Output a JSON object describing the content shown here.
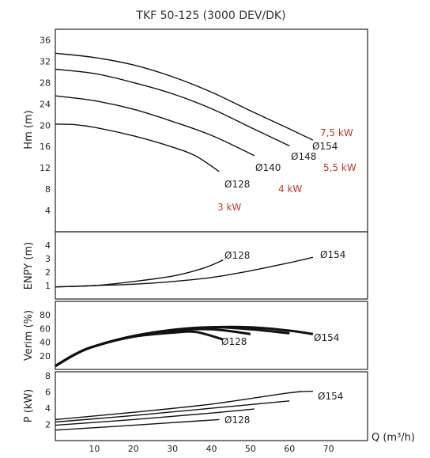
{
  "title": "TKF 50-125 (3000 DEV/DK)",
  "chart_data": {
    "type": "line",
    "title": "TKF 50-125 (3000 DEV/DK)",
    "xlabel": "Q (m³/h)",
    "xlim": [
      0,
      80
    ],
    "x_ticks": [
      "10",
      "20",
      "30",
      "40",
      "50",
      "60",
      "70"
    ],
    "grid": true,
    "panels": [
      {
        "id": "head",
        "ylabel": "Hm (m)",
        "ylim": [
          0,
          38
        ],
        "y_ticks": [
          "4",
          "8",
          "12",
          "16",
          "20",
          "24",
          "28",
          "32",
          "36"
        ],
        "series": [
          {
            "name": "Ø154",
            "points": [
              [
                0,
                33.5
              ],
              [
                10,
                32.7
              ],
              [
                20,
                31.3
              ],
              [
                30,
                29.1
              ],
              [
                40,
                26.2
              ],
              [
                50,
                22.7
              ],
              [
                60,
                19.3
              ],
              [
                66,
                17.2
              ]
            ]
          },
          {
            "name": "Ø148",
            "points": [
              [
                0,
                30.5
              ],
              [
                10,
                29.7
              ],
              [
                20,
                28.0
              ],
              [
                30,
                25.9
              ],
              [
                40,
                23.1
              ],
              [
                50,
                19.6
              ],
              [
                60,
                16.1
              ]
            ]
          },
          {
            "name": "Ø140",
            "points": [
              [
                0,
                25.5
              ],
              [
                10,
                24.6
              ],
              [
                20,
                23.0
              ],
              [
                30,
                20.7
              ],
              [
                40,
                18.1
              ],
              [
                51,
                14.3
              ]
            ]
          },
          {
            "name": "Ø128",
            "points": [
              [
                0,
                20.2
              ],
              [
                5,
                20.1
              ],
              [
                10,
                19.6
              ],
              [
                20,
                18.0
              ],
              [
                30,
                15.9
              ],
              [
                36,
                14.2
              ],
              [
                42,
                11.3
              ]
            ]
          }
        ],
        "annotations": [
          {
            "text": "Ø154"
          },
          {
            "text": "Ø148"
          },
          {
            "text": "Ø140"
          },
          {
            "text": "Ø128"
          },
          {
            "text": "7,5 kW"
          },
          {
            "text": "5,5 kW"
          },
          {
            "text": "4 kW"
          },
          {
            "text": "3 kW"
          }
        ]
      },
      {
        "id": "npsh",
        "ylabel": "ENPY (m)",
        "ylim": [
          0,
          5
        ],
        "y_ticks": [
          "1",
          "2",
          "3",
          "4"
        ],
        "series": [
          {
            "name": "Ø154",
            "points": [
              [
                0,
                0.9
              ],
              [
                10,
                1.0
              ],
              [
                20,
                1.1
              ],
              [
                30,
                1.3
              ],
              [
                40,
                1.6
              ],
              [
                50,
                2.1
              ],
              [
                60,
                2.7
              ],
              [
                66,
                3.1
              ]
            ]
          },
          {
            "name": "Ø128",
            "points": [
              [
                0,
                0.9
              ],
              [
                10,
                1.0
              ],
              [
                20,
                1.3
              ],
              [
                30,
                1.7
              ],
              [
                38,
                2.3
              ],
              [
                43,
                2.9
              ]
            ]
          }
        ],
        "annotations": [
          {
            "text": "Ø128"
          },
          {
            "text": "Ø154"
          }
        ]
      },
      {
        "id": "efficiency",
        "ylabel": "Verim (%)",
        "ylim": [
          0,
          100
        ],
        "y_ticks": [
          "20",
          "40",
          "60",
          "80"
        ],
        "series": [
          {
            "name": "Ø154",
            "points": [
              [
                0,
                5
              ],
              [
                5,
                22
              ],
              [
                10,
                34
              ],
              [
                20,
                49
              ],
              [
                30,
                58
              ],
              [
                40,
                62
              ],
              [
                50,
                62
              ],
              [
                60,
                57
              ],
              [
                66,
                52
              ]
            ]
          },
          {
            "name": "Ø148",
            "points": [
              [
                0,
                5
              ],
              [
                5,
                22
              ],
              [
                10,
                34
              ],
              [
                20,
                49
              ],
              [
                30,
                58
              ],
              [
                40,
                62
              ],
              [
                50,
                59
              ],
              [
                60,
                53
              ]
            ]
          },
          {
            "name": "Ø140",
            "points": [
              [
                0,
                5
              ],
              [
                5,
                22
              ],
              [
                10,
                34
              ],
              [
                20,
                49
              ],
              [
                30,
                57
              ],
              [
                40,
                59
              ],
              [
                50,
                52
              ]
            ]
          },
          {
            "name": "Ø128",
            "points": [
              [
                0,
                5
              ],
              [
                5,
                22
              ],
              [
                10,
                34
              ],
              [
                20,
                48
              ],
              [
                30,
                54
              ],
              [
                36,
                55
              ],
              [
                43,
                44
              ]
            ]
          }
        ],
        "annotations": [
          {
            "text": "Ø128"
          },
          {
            "text": "Ø154"
          }
        ]
      },
      {
        "id": "power",
        "ylabel": "P (kW)",
        "ylim": [
          0,
          8.5
        ],
        "y_ticks": [
          "2",
          "4",
          "6",
          "8"
        ],
        "series": [
          {
            "name": "Ø154",
            "points": [
              [
                0,
                2.6
              ],
              [
                20,
                3.5
              ],
              [
                40,
                4.5
              ],
              [
                60,
                5.9
              ],
              [
                66,
                6.1
              ]
            ]
          },
          {
            "name": "Ø148",
            "points": [
              [
                0,
                2.3
              ],
              [
                20,
                3.1
              ],
              [
                40,
                4.0
              ],
              [
                60,
                4.9
              ]
            ]
          },
          {
            "name": "Ø140",
            "points": [
              [
                0,
                1.9
              ],
              [
                20,
                2.6
              ],
              [
                40,
                3.4
              ],
              [
                51,
                3.9
              ]
            ]
          },
          {
            "name": "Ø128",
            "points": [
              [
                0,
                1.3
              ],
              [
                20,
                1.9
              ],
              [
                42,
                2.6
              ]
            ]
          }
        ],
        "annotations": [
          {
            "text": "Ø154"
          },
          {
            "text": "Ø128"
          }
        ]
      }
    ]
  }
}
